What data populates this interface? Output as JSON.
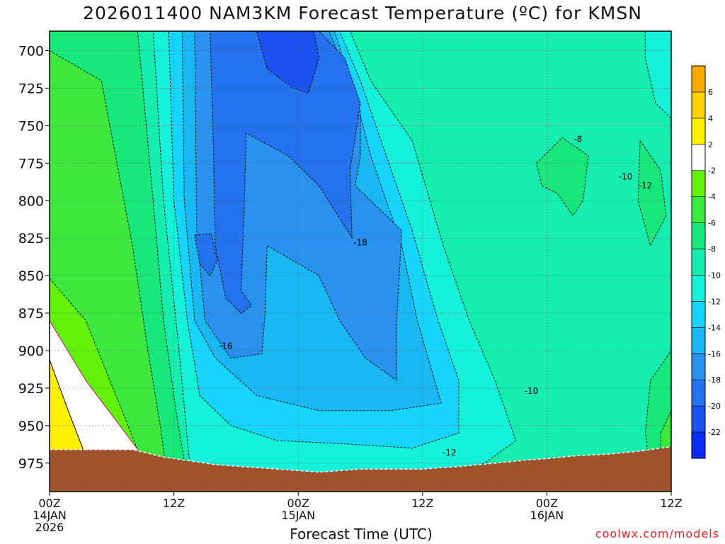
{
  "title": "2026011400 NAM3KM Forecast Temperature (ºC) for KMSN",
  "credit": "coolwx.com/models",
  "chart_data": {
    "type": "heatmap",
    "title": "2026011400 NAM3KM Forecast Temperature (ºC) for KMSN",
    "xlabel": "Forecast Time (UTC)",
    "ylabel": "",
    "x_ticks": [
      {
        "hour": 0,
        "lines": [
          "00Z",
          "14JAN",
          "2026"
        ]
      },
      {
        "hour": 12,
        "lines": [
          "12Z"
        ]
      },
      {
        "hour": 24,
        "lines": [
          "00Z",
          "15JAN"
        ]
      },
      {
        "hour": 36,
        "lines": [
          "12Z"
        ]
      },
      {
        "hour": 48,
        "lines": [
          "00Z",
          "16JAN"
        ]
      },
      {
        "hour": 60,
        "lines": [
          "12Z"
        ]
      }
    ],
    "xlim": [
      0,
      60
    ],
    "y_ticks": [
      700,
      725,
      750,
      775,
      800,
      825,
      850,
      875,
      900,
      925,
      950,
      975
    ],
    "ylim": [
      687,
      994
    ],
    "colorbar": {
      "levels": [
        -24,
        -22,
        -20,
        -18,
        -16,
        -14,
        -12,
        -10,
        -8,
        -6,
        -4,
        -2,
        2,
        4,
        6,
        8
      ],
      "tick_labels": [
        "-22",
        "-20",
        "-18",
        "-16",
        "-14",
        "-12",
        "-10",
        "-8",
        "-6",
        "-4",
        "-2",
        "2",
        "4",
        "6"
      ],
      "colors": [
        "#0a2cf2",
        "#1c52f2",
        "#2472ee",
        "#2a92ee",
        "#1ab8f2",
        "#16d4fa",
        "#16f2da",
        "#16eeb0",
        "#18e87a",
        "#3ce83e",
        "#62f20a",
        "#ffffff",
        "#fff000",
        "#ffd200",
        "#ffaa00"
      ]
    },
    "contour_labels": [
      {
        "text": "-8",
        "hour": 51,
        "pressure": 759
      },
      {
        "text": "-10",
        "hour": 55.6,
        "pressure": 784
      },
      {
        "text": "-12",
        "hour": 57.5,
        "pressure": 790
      },
      {
        "text": "-18",
        "hour": 30,
        "pressure": 828
      },
      {
        "text": "-16",
        "hour": 17,
        "pressure": 897
      },
      {
        "text": "-10",
        "hour": 46.5,
        "pressure": 927
      },
      {
        "text": "-12",
        "hour": 38.6,
        "pressure": 968
      }
    ],
    "regions": [
      {
        "value": -10,
        "points": [
          [
            0,
            687
          ],
          [
            60,
            687
          ],
          [
            60,
            994
          ],
          [
            0,
            994
          ]
        ]
      },
      {
        "value": -8,
        "points": [
          [
            0,
            687
          ],
          [
            8.5,
            687
          ],
          [
            10,
            800
          ],
          [
            11,
            880
          ],
          [
            12.2,
            940
          ],
          [
            13.5,
            994
          ],
          [
            0,
            994
          ]
        ]
      },
      {
        "value": -6,
        "points": [
          [
            0,
            700
          ],
          [
            5,
            720
          ],
          [
            8,
            830
          ],
          [
            9.5,
            900
          ],
          [
            10.8,
            955
          ],
          [
            11.5,
            994
          ],
          [
            0,
            994
          ]
        ]
      },
      {
        "value": -4,
        "points": [
          [
            0,
            852
          ],
          [
            3.5,
            880
          ],
          [
            7,
            940
          ],
          [
            9,
            975
          ],
          [
            9.5,
            994
          ],
          [
            0,
            994
          ]
        ]
      },
      {
        "value": -2,
        "points": [
          [
            0,
            880
          ],
          [
            3.5,
            920
          ],
          [
            7,
            952
          ],
          [
            9.5,
            975
          ],
          [
            9.6,
            994
          ],
          [
            0,
            994
          ]
        ]
      },
      {
        "value": 2,
        "points": [
          [
            0,
            906
          ],
          [
            1.8,
            940
          ],
          [
            3.2,
            965
          ],
          [
            3.3,
            994
          ],
          [
            0,
            994
          ]
        ]
      },
      {
        "value": -12,
        "points": [
          [
            10,
            687
          ],
          [
            29,
            687
          ],
          [
            31,
            720
          ],
          [
            35,
            760
          ],
          [
            38,
            830
          ],
          [
            40.5,
            880
          ],
          [
            43,
            920
          ],
          [
            45,
            960
          ],
          [
            42,
            975
          ],
          [
            36.5,
            985
          ],
          [
            30,
            985
          ],
          [
            24,
            985
          ],
          [
            18.5,
            980
          ],
          [
            13.5,
            974
          ],
          [
            12.5,
            900
          ],
          [
            11,
            800
          ]
        ]
      },
      {
        "value": -14,
        "points": [
          [
            11.5,
            687
          ],
          [
            28,
            687
          ],
          [
            30,
            720
          ],
          [
            32,
            760
          ],
          [
            35,
            820
          ],
          [
            37.5,
            880
          ],
          [
            39.5,
            920
          ],
          [
            39.5,
            955
          ],
          [
            35,
            965
          ],
          [
            28,
            962
          ],
          [
            22,
            960
          ],
          [
            17.5,
            950
          ],
          [
            14.5,
            930
          ],
          [
            13.3,
            880
          ],
          [
            12,
            800
          ]
        ]
      },
      {
        "value": -16,
        "points": [
          [
            12.8,
            687
          ],
          [
            27.5,
            687
          ],
          [
            29.5,
            730
          ],
          [
            31,
            770
          ],
          [
            34,
            830
          ],
          [
            35.5,
            880
          ],
          [
            37.8,
            935
          ],
          [
            33,
            940
          ],
          [
            26,
            940
          ],
          [
            20,
            930
          ],
          [
            16,
            905
          ],
          [
            14,
            880
          ],
          [
            13,
            800
          ]
        ]
      },
      {
        "value": -18,
        "points": [
          [
            14,
            687
          ],
          [
            27,
            687
          ],
          [
            30,
            740
          ],
          [
            30,
            770
          ],
          [
            29.5,
            790
          ],
          [
            34,
            820
          ],
          [
            33.5,
            880
          ],
          [
            33.5,
            920
          ],
          [
            30.5,
            905
          ],
          [
            28,
            880
          ],
          [
            26,
            850
          ],
          [
            21,
            830
          ],
          [
            20.8,
            875
          ],
          [
            20.5,
            902
          ],
          [
            17.5,
            905
          ],
          [
            15,
            880
          ],
          [
            14.2,
            820
          ]
        ]
      },
      {
        "value": -20,
        "points": [
          [
            15.5,
            687
          ],
          [
            26,
            687
          ],
          [
            28.5,
            705
          ],
          [
            30,
            735
          ],
          [
            29,
            780
          ],
          [
            29.2,
            825
          ],
          [
            26,
            790
          ],
          [
            23,
            770
          ],
          [
            19,
            755
          ],
          [
            18.8,
            800
          ],
          [
            18.5,
            860
          ],
          [
            19.5,
            870
          ],
          [
            18.5,
            875
          ],
          [
            17,
            865
          ],
          [
            16,
            830
          ],
          [
            15.8,
            760
          ]
        ]
      },
      {
        "value": -22,
        "points": [
          [
            20,
            687
          ],
          [
            25.5,
            687
          ],
          [
            26,
            705
          ],
          [
            25,
            728
          ],
          [
            23.5,
            725
          ],
          [
            21,
            712
          ]
        ]
      },
      {
        "value": -20,
        "points": [
          [
            14,
            823
          ],
          [
            15.6,
            822
          ],
          [
            16.2,
            840
          ],
          [
            15.5,
            850
          ],
          [
            14.5,
            842
          ]
        ]
      },
      {
        "value": -8,
        "points": [
          [
            47,
            775
          ],
          [
            49.5,
            758
          ],
          [
            52,
            770
          ],
          [
            51.5,
            800
          ],
          [
            50.5,
            810
          ],
          [
            49,
            795
          ],
          [
            47.5,
            790
          ]
        ]
      },
      {
        "value": -8,
        "points": [
          [
            57,
            760
          ],
          [
            59,
            780
          ],
          [
            59.5,
            810
          ],
          [
            58,
            830
          ],
          [
            56.8,
            800
          ]
        ]
      },
      {
        "value": -12,
        "points": [
          [
            57.5,
            687
          ],
          [
            60,
            687
          ],
          [
            60,
            745
          ],
          [
            58.5,
            735
          ],
          [
            57.5,
            705
          ]
        ]
      },
      {
        "value": -8,
        "points": [
          [
            58,
            920
          ],
          [
            60,
            900
          ],
          [
            60,
            975
          ],
          [
            58,
            980
          ],
          [
            57.5,
            955
          ]
        ]
      },
      {
        "value": -6,
        "points": [
          [
            59,
            955
          ],
          [
            60,
            940
          ],
          [
            60,
            980
          ],
          [
            59,
            982
          ]
        ]
      }
    ],
    "terrain": {
      "color": "#a0522d",
      "surface_pressure": [
        [
          0,
          966
        ],
        [
          2,
          966
        ],
        [
          5,
          966
        ],
        [
          8,
          966
        ],
        [
          11,
          971
        ],
        [
          13,
          973
        ],
        [
          16,
          976
        ],
        [
          18,
          977
        ],
        [
          20,
          978
        ],
        [
          22,
          979
        ],
        [
          24,
          980
        ],
        [
          26,
          981
        ],
        [
          28,
          980
        ],
        [
          30,
          979
        ],
        [
          33,
          979
        ],
        [
          36,
          979
        ],
        [
          38,
          978
        ],
        [
          40,
          977
        ],
        [
          43,
          975
        ],
        [
          46,
          973
        ],
        [
          48,
          972
        ],
        [
          51,
          970
        ],
        [
          54,
          969
        ],
        [
          57,
          967
        ],
        [
          60,
          964
        ]
      ]
    }
  }
}
